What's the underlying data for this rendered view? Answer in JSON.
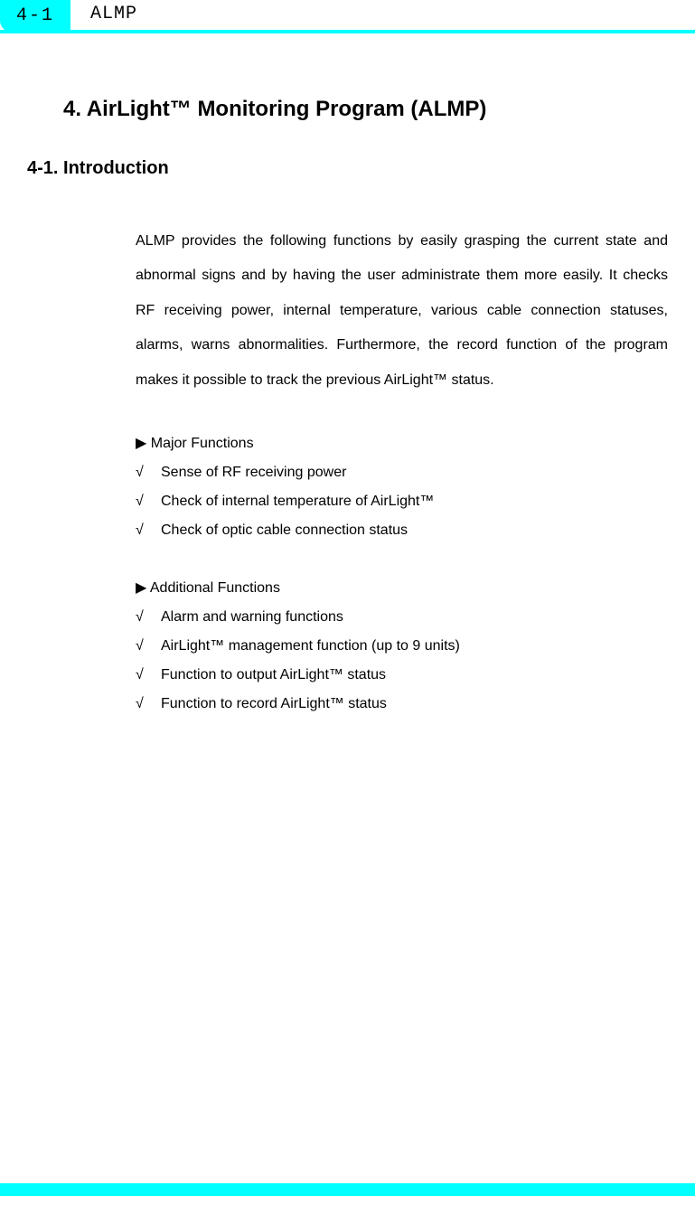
{
  "header": {
    "page_number": "4-1",
    "title": "ALMP"
  },
  "chapter": {
    "title": "4. AirLight™ Monitoring Program (ALMP)"
  },
  "section": {
    "title": "4-1. Introduction"
  },
  "intro": {
    "text": "ALMP provides the following functions by easily grasping the current state and abnormal signs and by having the user administrate them more easily. It checks RF receiving power, internal temperature, various cable connection statuses, alarms, warns abnormalities. Furthermore, the record function of the program makes it possible to track the previous AirLight™ status."
  },
  "major_functions": {
    "header": "▶ Major Functions",
    "items": [
      "Sense of RF receiving power",
      "Check of internal temperature of AirLight™",
      "Check of optic cable connection status"
    ]
  },
  "additional_functions": {
    "header": "▶ Additional Functions",
    "items": [
      "Alarm and warning functions",
      "AirLight™ management function (up to 9 units)",
      "Function to output AirLight™ status",
      "Function to record AirLight™ status"
    ]
  },
  "colors": {
    "accent": "#00ffff",
    "text": "#000000",
    "background": "#ffffff"
  }
}
